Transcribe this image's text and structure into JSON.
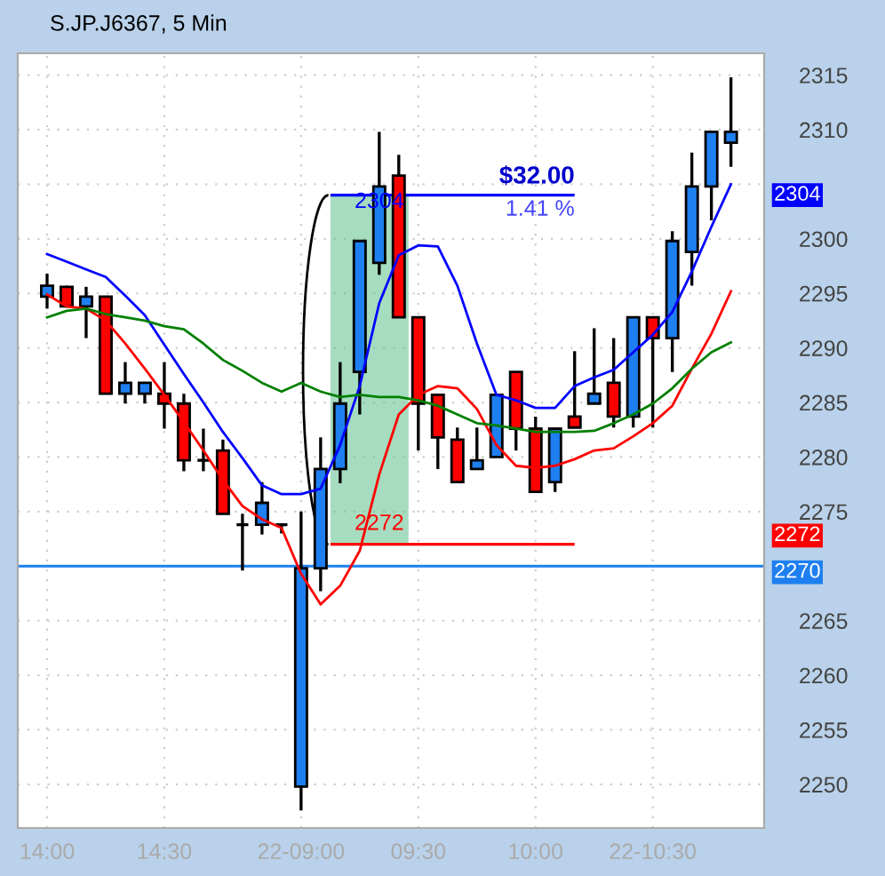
{
  "chart_data": {
    "type": "candlestick",
    "title": "S.JP.J6367, 5 Min",
    "categories": [
      "14:00",
      null,
      null,
      null,
      null,
      null,
      "14:30",
      null,
      null,
      null,
      null,
      null,
      null,
      "22-09:00",
      null,
      null,
      null,
      null,
      null,
      "09:30",
      null,
      null,
      null,
      null,
      null,
      "10:00",
      null,
      null,
      null,
      null,
      null,
      "22-10:30",
      null,
      null,
      null,
      null
    ],
    "ohlc": [
      [
        2294.7,
        2296.8,
        2293.6,
        2295.7
      ],
      [
        2295.6,
        2295.7,
        2293.7,
        2293.8
      ],
      [
        2293.8,
        2295.6,
        2290.9,
        2294.7
      ],
      [
        2294.7,
        2294.7,
        2285.8,
        2285.8
      ],
      [
        2285.8,
        2288.7,
        2284.9,
        2286.8
      ],
      [
        2285.8,
        2286.8,
        2284.9,
        2286.8
      ],
      [
        2285.8,
        2288.7,
        2282.6,
        2284.9
      ],
      [
        2284.9,
        2285.8,
        2278.7,
        2279.7
      ],
      [
        2279.7,
        2282.6,
        2278.7,
        2279.7
      ],
      [
        2280.6,
        2281.6,
        2274.8,
        2274.8
      ],
      [
        2273.8,
        2274.8,
        2269.6,
        2273.8
      ],
      [
        2273.8,
        2277.7,
        2272.9,
        2275.8
      ],
      [
        2273.8,
        2273.8,
        2273.0,
        2273.8
      ],
      [
        2249.8,
        2275.0,
        2247.6,
        2269.8
      ],
      [
        2269.8,
        2281.8,
        2267.7,
        2278.9
      ],
      [
        2278.9,
        2288.7,
        2277.6,
        2284.9
      ],
      [
        2287.8,
        2299.8,
        2283.9,
        2299.8
      ],
      [
        2297.8,
        2309.8,
        2296.7,
        2304.8
      ],
      [
        2305.8,
        2307.7,
        2292.8,
        2292.8
      ],
      [
        2292.8,
        2292.8,
        2280.6,
        2284.9
      ],
      [
        2285.7,
        2285.7,
        2278.9,
        2281.8
      ],
      [
        2281.6,
        2282.7,
        2277.7,
        2277.7
      ],
      [
        2278.9,
        2282.7,
        2278.9,
        2279.7
      ],
      [
        2280.0,
        2285.7,
        2280.0,
        2285.7
      ],
      [
        2287.8,
        2287.8,
        2280.6,
        2282.6
      ],
      [
        2282.6,
        2283.7,
        2276.8,
        2276.8
      ],
      [
        2277.7,
        2282.6,
        2276.8,
        2282.6
      ],
      [
        2283.7,
        2289.7,
        2282.7,
        2282.7
      ],
      [
        2284.9,
        2291.8,
        2284.9,
        2285.8
      ],
      [
        2286.8,
        2290.9,
        2282.7,
        2283.7
      ],
      [
        2283.7,
        2292.8,
        2282.7,
        2292.8
      ],
      [
        2292.8,
        2292.8,
        2282.7,
        2290.9
      ],
      [
        2290.9,
        2300.7,
        2287.8,
        2299.8
      ],
      [
        2298.8,
        2307.9,
        2295.7,
        2304.8
      ],
      [
        2304.8,
        2309.8,
        2301.7,
        2309.8
      ],
      [
        2308.8,
        2314.8,
        2306.6,
        2309.8
      ]
    ],
    "colors": [
      "#1e7ff0",
      "#ff0000",
      "#1e7ff0",
      "#ff0000",
      "#1e7ff0",
      "#1e7ff0",
      "#ff0000",
      "#ff0000",
      "#000000",
      "#ff0000",
      "#000000",
      "#1e7ff0",
      "#000000",
      "#1e7ff0",
      "#1e7ff0",
      "#1e7ff0",
      "#1e7ff0",
      "#1e7ff0",
      "#ff0000",
      "#ff0000",
      "#ff0000",
      "#ff0000",
      "#1e7ff0",
      "#1e7ff0",
      "#ff0000",
      "#ff0000",
      "#1e7ff0",
      "#ff0000",
      "#1e7ff0",
      "#ff0000",
      "#1e7ff0",
      "#ff0000",
      "#1e7ff0",
      "#1e7ff0",
      "#1e7ff0",
      "#1e7ff0"
    ],
    "series": [
      {
        "type": "line",
        "color": "#0000ff",
        "values": [
          2298.6,
          2297.9,
          2297.2,
          2296.5,
          2294.8,
          2293.0,
          2290.3,
          2287.6,
          2285.0,
          2282.3,
          2279.9,
          2277.4,
          2276.6,
          2276.6,
          2277.1,
          2281.1,
          2286.5,
          2294.1,
          2298.5,
          2299.4,
          2299.3,
          2295.7,
          2290.4,
          2285.7,
          2285.2,
          2284.5,
          2284.5,
          2286.5,
          2287.3,
          2288.0,
          2289.6,
          2291.2,
          2293.3,
          2297.0,
          2301.1,
          2305.0
        ]
      },
      {
        "type": "line",
        "color": "#ff0000",
        "values": [
          2294.9,
          2293.8,
          2293.6,
          2292.5,
          2290.4,
          2288.1,
          2285.7,
          2283.2,
          2280.6,
          2277.9,
          2275.5,
          2274.3,
          2273.5,
          2269.3,
          2266.5,
          2268.2,
          2271.4,
          2278.4,
          2283.9,
          2285.7,
          2286.5,
          2286.3,
          2284.4,
          2281.1,
          2279.2,
          2279.0,
          2279.2,
          2279.8,
          2280.6,
          2280.8,
          2281.9,
          2283.1,
          2284.7,
          2288.1,
          2291.3,
          2295.2
        ]
      },
      {
        "type": "line",
        "color": "#008000",
        "values": [
          2292.8,
          2293.4,
          2293.6,
          2293.1,
          2292.8,
          2292.5,
          2292.0,
          2291.7,
          2290.4,
          2288.9,
          2287.9,
          2286.8,
          2286.0,
          2286.8,
          2286.0,
          2285.5,
          2285.7,
          2285.5,
          2285.5,
          2285.2,
          2284.7,
          2283.9,
          2283.1,
          2282.9,
          2282.6,
          2282.3,
          2282.3,
          2282.3,
          2282.4,
          2283.1,
          2283.9,
          2284.9,
          2286.3,
          2288.1,
          2289.6,
          2290.5
        ]
      }
    ],
    "ylim": [
      2246,
      2317
    ],
    "yticks": [
      2250,
      2255,
      2260,
      2265,
      {
        "value": 2270,
        "label": null
      },
      2275,
      2280,
      2285,
      2290,
      2295,
      2300,
      {
        "value": 2305,
        "label": null
      },
      2310,
      2315
    ],
    "grid": true,
    "ref_lines": [
      {
        "axis": "y",
        "value": 2270,
        "label": "2270",
        "color": "#1e7ff0"
      },
      {
        "axis": "y",
        "value": 2304,
        "label": "2304",
        "color": "#0000ff"
      },
      {
        "axis": "y",
        "value": 2272,
        "label": "2272",
        "color": "#ff0000"
      }
    ],
    "annotations": [
      "$32.00",
      "1.41 %"
    ]
  }
}
